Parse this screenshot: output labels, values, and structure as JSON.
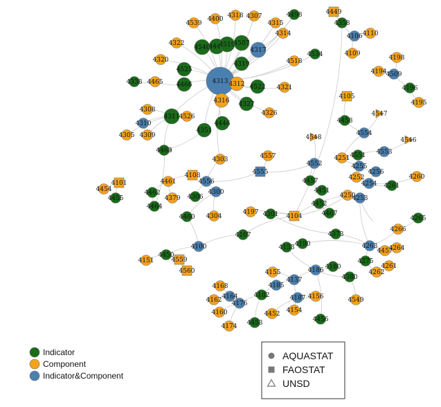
{
  "colors": {
    "indicator": "#1a6b1a",
    "component": "#f5a21b",
    "both": "#4a80b0",
    "edge": "#c9c9c9"
  },
  "legend_roles": [
    {
      "key": "indicator",
      "label": "Indicator"
    },
    {
      "key": "component",
      "label": "Component"
    },
    {
      "key": "both",
      "label": "Indicator&Component"
    }
  ],
  "legend_sources": [
    {
      "key": "circle",
      "label": "AQUASTAT"
    },
    {
      "key": "square",
      "label": "FAOSTAT"
    },
    {
      "key": "triangle",
      "label": "UNSD"
    }
  ],
  "nodes": [
    {
      "id": "4449",
      "role": "component",
      "shape": "square"
    },
    {
      "id": "4498",
      "role": "indicator",
      "shape": "circle"
    },
    {
      "id": "4400",
      "role": "component",
      "shape": "circle"
    },
    {
      "id": "4318",
      "role": "component",
      "shape": "circle"
    },
    {
      "id": "4307",
      "role": "component",
      "shape": "circle"
    },
    {
      "id": "4315",
      "role": "component",
      "shape": "circle"
    },
    {
      "id": "4539",
      "role": "component",
      "shape": "circle"
    },
    {
      "id": "4314",
      "role": "component",
      "shape": "circle"
    },
    {
      "id": "4322",
      "role": "component",
      "shape": "circle"
    },
    {
      "id": "4540",
      "role": "indicator",
      "shape": "circle"
    },
    {
      "id": "4444",
      "role": "indicator",
      "shape": "circle"
    },
    {
      "id": "4519",
      "role": "indicator",
      "shape": "circle"
    },
    {
      "id": "4507",
      "role": "indicator",
      "shape": "circle"
    },
    {
      "id": "4317",
      "role": "both",
      "shape": "circle"
    },
    {
      "id": "4320",
      "role": "component",
      "shape": "circle"
    },
    {
      "id": "4525",
      "role": "indicator",
      "shape": "circle"
    },
    {
      "id": "4319",
      "role": "indicator",
      "shape": "circle"
    },
    {
      "id": "4518",
      "role": "component",
      "shape": "circle"
    },
    {
      "id": "4534",
      "role": "indicator",
      "shape": "circle"
    },
    {
      "id": "4338",
      "role": "indicator",
      "shape": "circle"
    },
    {
      "id": "4465",
      "role": "component",
      "shape": "circle"
    },
    {
      "id": "4466",
      "role": "indicator",
      "shape": "circle"
    },
    {
      "id": "4313",
      "role": "both",
      "shape": "circle"
    },
    {
      "id": "4312",
      "role": "component",
      "shape": "circle"
    },
    {
      "id": "4311",
      "role": "indicator",
      "shape": "circle"
    },
    {
      "id": "4321",
      "role": "component",
      "shape": "circle"
    },
    {
      "id": "4522",
      "role": "indicator",
      "shape": "circle"
    },
    {
      "id": "4316",
      "role": "component",
      "shape": "circle"
    },
    {
      "id": "4327",
      "role": "indicator",
      "shape": "circle"
    },
    {
      "id": "4308",
      "role": "component",
      "shape": "circle"
    },
    {
      "id": "4310",
      "role": "both",
      "shape": "circle"
    },
    {
      "id": "4526",
      "role": "component",
      "shape": "circle"
    },
    {
      "id": "4326",
      "role": "component",
      "shape": "circle"
    },
    {
      "id": "4305",
      "role": "component",
      "shape": "circle"
    },
    {
      "id": "4309",
      "role": "component",
      "shape": "circle"
    },
    {
      "id": "4351",
      "role": "indicator",
      "shape": "circle"
    },
    {
      "id": "4446",
      "role": "indicator",
      "shape": "circle"
    },
    {
      "id": "4499",
      "role": "indicator",
      "shape": "circle"
    },
    {
      "id": "4463",
      "role": "indicator",
      "shape": "circle"
    },
    {
      "id": "4303",
      "role": "component",
      "shape": "circle"
    },
    {
      "id": "4108",
      "role": "component",
      "shape": "square"
    },
    {
      "id": "4461",
      "role": "component",
      "shape": "circle"
    },
    {
      "id": "4556",
      "role": "both",
      "shape": "circle"
    },
    {
      "id": "4101",
      "role": "component",
      "shape": "square"
    },
    {
      "id": "4454",
      "role": "component",
      "shape": "circle"
    },
    {
      "id": "4455",
      "role": "indicator",
      "shape": "circle"
    },
    {
      "id": "4462",
      "role": "indicator",
      "shape": "circle"
    },
    {
      "id": "4379",
      "role": "component",
      "shape": "circle"
    },
    {
      "id": "4306",
      "role": "indicator",
      "shape": "circle"
    },
    {
      "id": "4300",
      "role": "both",
      "shape": "circle"
    },
    {
      "id": "4464",
      "role": "indicator",
      "shape": "circle"
    },
    {
      "id": "4460",
      "role": "indicator",
      "shape": "circle"
    },
    {
      "id": "4304",
      "role": "component",
      "shape": "circle"
    },
    {
      "id": "4197",
      "role": "component",
      "shape": "circle"
    },
    {
      "id": "4301",
      "role": "indicator",
      "shape": "circle"
    },
    {
      "id": "4557",
      "role": "component",
      "shape": "circle"
    },
    {
      "id": "4555",
      "role": "both",
      "shape": "square"
    },
    {
      "id": "4104",
      "role": "component",
      "shape": "square"
    },
    {
      "id": "4107",
      "role": "indicator",
      "shape": "circle"
    },
    {
      "id": "4100",
      "role": "both",
      "shape": "circle"
    },
    {
      "id": "4151",
      "role": "component",
      "shape": "circle"
    },
    {
      "id": "4450",
      "role": "indicator",
      "shape": "circle"
    },
    {
      "id": "4559",
      "role": "component",
      "shape": "square"
    },
    {
      "id": "4560",
      "role": "component",
      "shape": "square"
    },
    {
      "id": "4358",
      "role": "indicator",
      "shape": "circle"
    },
    {
      "id": "4106",
      "role": "both",
      "shape": "circle"
    },
    {
      "id": "4110",
      "role": "component",
      "shape": "circle"
    },
    {
      "id": "4109",
      "role": "component",
      "shape": "circle"
    },
    {
      "id": "4198",
      "role": "component",
      "shape": "circle"
    },
    {
      "id": "4194",
      "role": "component",
      "shape": "circle"
    },
    {
      "id": "4509",
      "role": "both",
      "shape": "circle"
    },
    {
      "id": "4196",
      "role": "indicator",
      "shape": "circle"
    },
    {
      "id": "4195",
      "role": "component",
      "shape": "circle"
    },
    {
      "id": "4105",
      "role": "component",
      "shape": "square"
    },
    {
      "id": "4547",
      "role": "component",
      "shape": "triangle"
    },
    {
      "id": "4458",
      "role": "indicator",
      "shape": "circle"
    },
    {
      "id": "4554",
      "role": "both",
      "shape": "circle"
    },
    {
      "id": "4548",
      "role": "component",
      "shape": "triangle"
    },
    {
      "id": "4546",
      "role": "component",
      "shape": "triangle"
    },
    {
      "id": "4553",
      "role": "both",
      "shape": "circle"
    },
    {
      "id": "4251",
      "role": "component",
      "shape": "circle"
    },
    {
      "id": "4552",
      "role": "both",
      "shape": "circle"
    },
    {
      "id": "4551",
      "role": "indicator",
      "shape": "circle"
    },
    {
      "id": "4255",
      "role": "both",
      "shape": "circle"
    },
    {
      "id": "4256",
      "role": "both",
      "shape": "circle"
    },
    {
      "id": "4252",
      "role": "component",
      "shape": "circle"
    },
    {
      "id": "4254",
      "role": "both",
      "shape": "circle"
    },
    {
      "id": "4260",
      "role": "component",
      "shape": "circle"
    },
    {
      "id": "4457",
      "role": "indicator",
      "shape": "circle"
    },
    {
      "id": "4451",
      "role": "indicator",
      "shape": "circle"
    },
    {
      "id": "4250",
      "role": "component",
      "shape": "circle"
    },
    {
      "id": "4253",
      "role": "both",
      "shape": "circle"
    },
    {
      "id": "4261",
      "role": "indicator",
      "shape": "circle"
    },
    {
      "id": "4452",
      "role": "indicator",
      "shape": "circle"
    },
    {
      "id": "4467",
      "role": "indicator",
      "shape": "circle"
    },
    {
      "id": "4265",
      "role": "indicator",
      "shape": "circle"
    },
    {
      "id": "4266",
      "role": "component",
      "shape": "circle"
    },
    {
      "id": "4373",
      "role": "indicator",
      "shape": "circle"
    },
    {
      "id": "4263",
      "role": "both",
      "shape": "circle"
    },
    {
      "id": "4264",
      "role": "component",
      "shape": "circle"
    },
    {
      "id": "4153",
      "role": "indicator",
      "shape": "circle"
    },
    {
      "id": "4190",
      "role": "indicator",
      "shape": "circle"
    },
    {
      "id": "4457b",
      "label": "4457",
      "role": "component",
      "shape": "circle"
    },
    {
      "id": "4275",
      "role": "indicator",
      "shape": "circle"
    },
    {
      "id": "4262",
      "role": "component",
      "shape": "circle"
    },
    {
      "id": "4261b",
      "label": "4261",
      "role": "component",
      "shape": "circle"
    },
    {
      "id": "4186",
      "role": "both",
      "shape": "circle"
    },
    {
      "id": "4180",
      "role": "indicator",
      "shape": "circle"
    },
    {
      "id": "4380",
      "role": "indicator",
      "shape": "circle"
    },
    {
      "id": "4155",
      "role": "component",
      "shape": "circle"
    },
    {
      "id": "4137",
      "role": "both",
      "shape": "circle"
    },
    {
      "id": "4185",
      "role": "both",
      "shape": "circle"
    },
    {
      "id": "4168",
      "role": "component",
      "shape": "circle"
    },
    {
      "id": "4549",
      "role": "component",
      "shape": "circle"
    },
    {
      "id": "4164",
      "role": "both",
      "shape": "circle"
    },
    {
      "id": "4162",
      "role": "component",
      "shape": "circle"
    },
    {
      "id": "4182",
      "role": "indicator",
      "shape": "circle"
    },
    {
      "id": "4187",
      "role": "both",
      "shape": "circle"
    },
    {
      "id": "4156",
      "role": "component",
      "shape": "circle"
    },
    {
      "id": "4176",
      "role": "both",
      "shape": "circle"
    },
    {
      "id": "4160",
      "role": "component",
      "shape": "circle"
    },
    {
      "id": "4452b",
      "label": "4452",
      "role": "component",
      "shape": "circle"
    },
    {
      "id": "4154",
      "role": "component",
      "shape": "circle"
    },
    {
      "id": "4174",
      "role": "component",
      "shape": "circle"
    },
    {
      "id": "4453",
      "role": "indicator",
      "shape": "circle"
    },
    {
      "id": "4456",
      "role": "indicator",
      "shape": "circle"
    }
  ],
  "edges": [
    [
      "4313",
      "4400"
    ],
    [
      "4313",
      "4318"
    ],
    [
      "4313",
      "4307"
    ],
    [
      "4313",
      "4315"
    ],
    [
      "4313",
      "4539"
    ],
    [
      "4313",
      "4314"
    ],
    [
      "4313",
      "4322"
    ],
    [
      "4313",
      "4540"
    ],
    [
      "4313",
      "4444"
    ],
    [
      "4313",
      "4519"
    ],
    [
      "4313",
      "4507"
    ],
    [
      "4313",
      "4317"
    ],
    [
      "4313",
      "4320"
    ],
    [
      "4313",
      "4525"
    ],
    [
      "4313",
      "4319"
    ],
    [
      "4313",
      "4518"
    ],
    [
      "4313",
      "4534"
    ],
    [
      "4313",
      "4466"
    ],
    [
      "4313",
      "4312"
    ],
    [
      "4313",
      "4321"
    ],
    [
      "4313",
      "4522"
    ],
    [
      "4313",
      "4316"
    ],
    [
      "4313",
      "4327"
    ],
    [
      "4313",
      "4326"
    ],
    [
      "4313",
      "4351"
    ],
    [
      "4313",
      "4446"
    ],
    [
      "4313",
      "4311"
    ],
    [
      "4313",
      "4498"
    ],
    [
      "4317",
      "4498"
    ],
    [
      "4338",
      "4465"
    ],
    [
      "4465",
      "4466"
    ],
    [
      "4311",
      "4308"
    ],
    [
      "4311",
      "4310"
    ],
    [
      "4311",
      "4526"
    ],
    [
      "4311",
      "4309"
    ],
    [
      "4311",
      "4499"
    ],
    [
      "4311",
      "4305"
    ],
    [
      "4316",
      "4303"
    ],
    [
      "4303",
      "4556"
    ],
    [
      "4556",
      "4108"
    ],
    [
      "4556",
      "4300"
    ],
    [
      "4556",
      "4306"
    ],
    [
      "4556",
      "4555"
    ],
    [
      "4108",
      "4461"
    ],
    [
      "4461",
      "4462"
    ],
    [
      "4461",
      "4379"
    ],
    [
      "4101",
      "4454"
    ],
    [
      "4101",
      "4455"
    ],
    [
      "4300",
      "4304"
    ],
    [
      "4300",
      "4460"
    ],
    [
      "4462",
      "4464"
    ],
    [
      "4464",
      "4463"
    ],
    [
      "4463",
      "4351"
    ],
    [
      "4555",
      "4557"
    ],
    [
      "4555",
      "4552"
    ],
    [
      "4104",
      "4197"
    ],
    [
      "4104",
      "4301"
    ],
    [
      "4104",
      "4107"
    ],
    [
      "4104",
      "4250"
    ],
    [
      "4104",
      "4358"
    ],
    [
      "4107",
      "4100"
    ],
    [
      "4100",
      "4450"
    ],
    [
      "4100",
      "4460"
    ],
    [
      "4450",
      "4559"
    ],
    [
      "4450",
      "4151"
    ],
    [
      "4559",
      "4560"
    ],
    [
      "4449",
      "4358"
    ],
    [
      "4358",
      "4106"
    ],
    [
      "4106",
      "4110"
    ],
    [
      "4106",
      "4109"
    ],
    [
      "4509",
      "4198"
    ],
    [
      "4509",
      "4194"
    ],
    [
      "4509",
      "4196"
    ],
    [
      "4196",
      "4195"
    ],
    [
      "4105",
      "4458"
    ],
    [
      "4458",
      "4554"
    ],
    [
      "4554",
      "4547"
    ],
    [
      "4554",
      "4251"
    ],
    [
      "4553",
      "4546"
    ],
    [
      "4553",
      "4551"
    ],
    [
      "4551",
      "4255"
    ],
    [
      "4552",
      "4548"
    ],
    [
      "4552",
      "4457"
    ],
    [
      "4251",
      "4255"
    ],
    [
      "4255",
      "4256"
    ],
    [
      "4256",
      "4254"
    ],
    [
      "4254",
      "4252"
    ],
    [
      "4254",
      "4260"
    ],
    [
      "4254",
      "4261"
    ],
    [
      "4457",
      "4451"
    ],
    [
      "4451",
      "4452"
    ],
    [
      "4452",
      "4467"
    ],
    [
      "4250",
      "4253"
    ],
    [
      "4250",
      "4104"
    ],
    [
      "4253",
      "4267"
    ],
    [
      "4253",
      "4263"
    ],
    [
      "4263",
      "4373"
    ],
    [
      "4263",
      "4457b"
    ],
    [
      "4263",
      "4264"
    ],
    [
      "4263",
      "4266"
    ],
    [
      "4266",
      "4265"
    ],
    [
      "4263",
      "4275"
    ],
    [
      "4275",
      "4262"
    ],
    [
      "4262",
      "4261b"
    ],
    [
      "4263",
      "4190"
    ],
    [
      "4190",
      "4153"
    ],
    [
      "4153",
      "4186"
    ],
    [
      "4186",
      "4180"
    ],
    [
      "4186",
      "4380"
    ],
    [
      "4186",
      "4137"
    ],
    [
      "4137",
      "4155"
    ],
    [
      "4137",
      "4185"
    ],
    [
      "4137",
      "4187"
    ],
    [
      "4187",
      "4154"
    ],
    [
      "4187",
      "4156"
    ],
    [
      "4185",
      "4182"
    ],
    [
      "4182",
      "4176"
    ],
    [
      "4182",
      "4453"
    ],
    [
      "4176",
      "4164"
    ],
    [
      "4176",
      "4160"
    ],
    [
      "4176",
      "4174"
    ],
    [
      "4164",
      "4168"
    ],
    [
      "4164",
      "4162"
    ],
    [
      "4187",
      "4452b"
    ],
    [
      "4456",
      "4186"
    ],
    [
      "4549",
      "4380"
    ],
    [
      "4301",
      "4373"
    ],
    [
      "4310",
      "4309"
    ]
  ]
}
